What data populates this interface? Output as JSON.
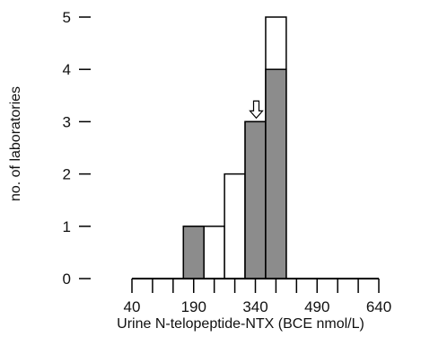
{
  "chart_data": {
    "type": "bar",
    "title": "",
    "xlabel": "Urine N-telopeptide-NTX (BCE nmol/L)",
    "ylabel": "no. of laboratories",
    "x_tick_labels": [
      "40",
      "190",
      "340",
      "490",
      "640"
    ],
    "x_tick_values": [
      40,
      190,
      340,
      490,
      640
    ],
    "y_tick_labels": [
      "0",
      "1",
      "2",
      "3",
      "4",
      "5"
    ],
    "y_tick_values": [
      0,
      1,
      2,
      3,
      4,
      5
    ],
    "xlim": [
      40,
      640
    ],
    "ylim": [
      0,
      5
    ],
    "bin_width": 50,
    "bins": [
      {
        "start": 165,
        "end": 215,
        "filled": 1,
        "total": 1
      },
      {
        "start": 215,
        "end": 265,
        "filled": 0,
        "total": 1
      },
      {
        "start": 265,
        "end": 315,
        "filled": 0,
        "total": 2
      },
      {
        "start": 315,
        "end": 365,
        "filled": 3,
        "total": 3
      },
      {
        "start": 365,
        "end": 415,
        "filled": 4,
        "total": 5
      }
    ],
    "marker": {
      "type": "down-arrow",
      "x": 340,
      "y": 3
    },
    "colors": {
      "filled": "#8c8c8c",
      "open": "#ffffff",
      "stroke": "#000000"
    },
    "grid": false,
    "legend": "none"
  }
}
